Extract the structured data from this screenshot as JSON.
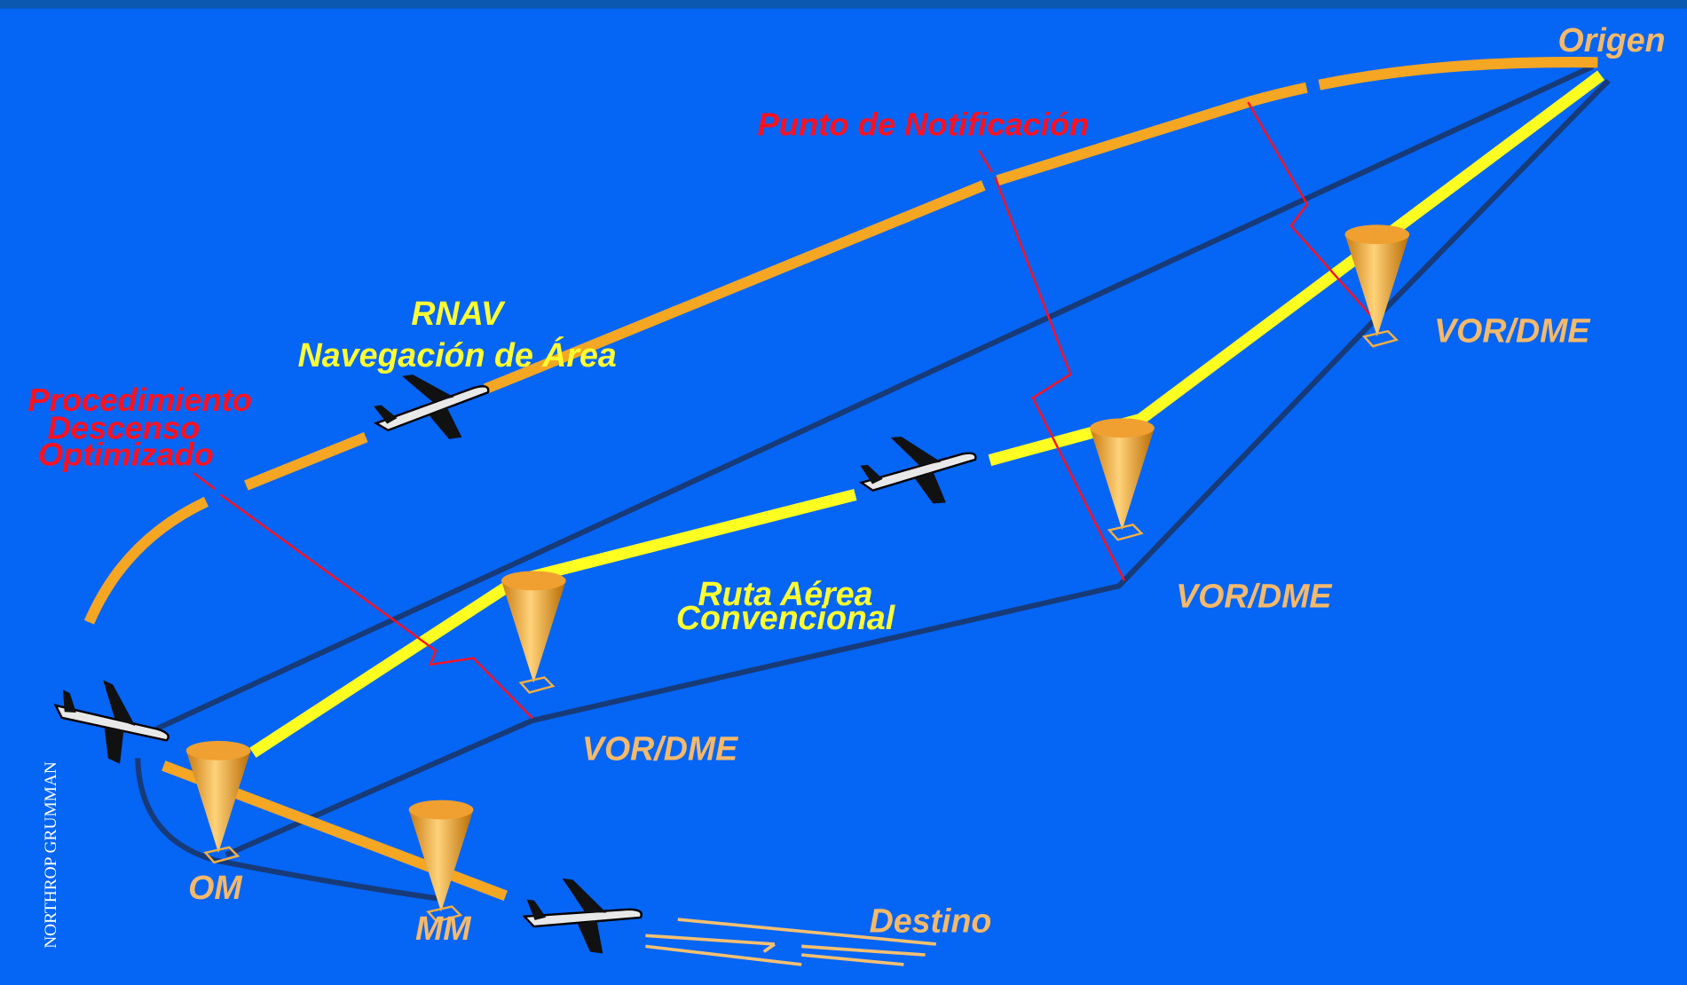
{
  "labels": {
    "origin": "Origen",
    "report_point": "Punto de Notificación",
    "rnav": "RNAV",
    "rnav_desc": "Navegación de Área",
    "procedure": [
      "Procedimiento",
      "Descenso",
      "Optimizado"
    ],
    "vor_dme": [
      "VOR/DME",
      "VOR/DME",
      "VOR/DME",
      "VOR/DME"
    ],
    "route": [
      "Ruta Aérea",
      "Convencional"
    ],
    "om": "OM",
    "mm": "MM",
    "destination": "Destino",
    "brand": "NORTHROP GRUMMAN"
  }
}
